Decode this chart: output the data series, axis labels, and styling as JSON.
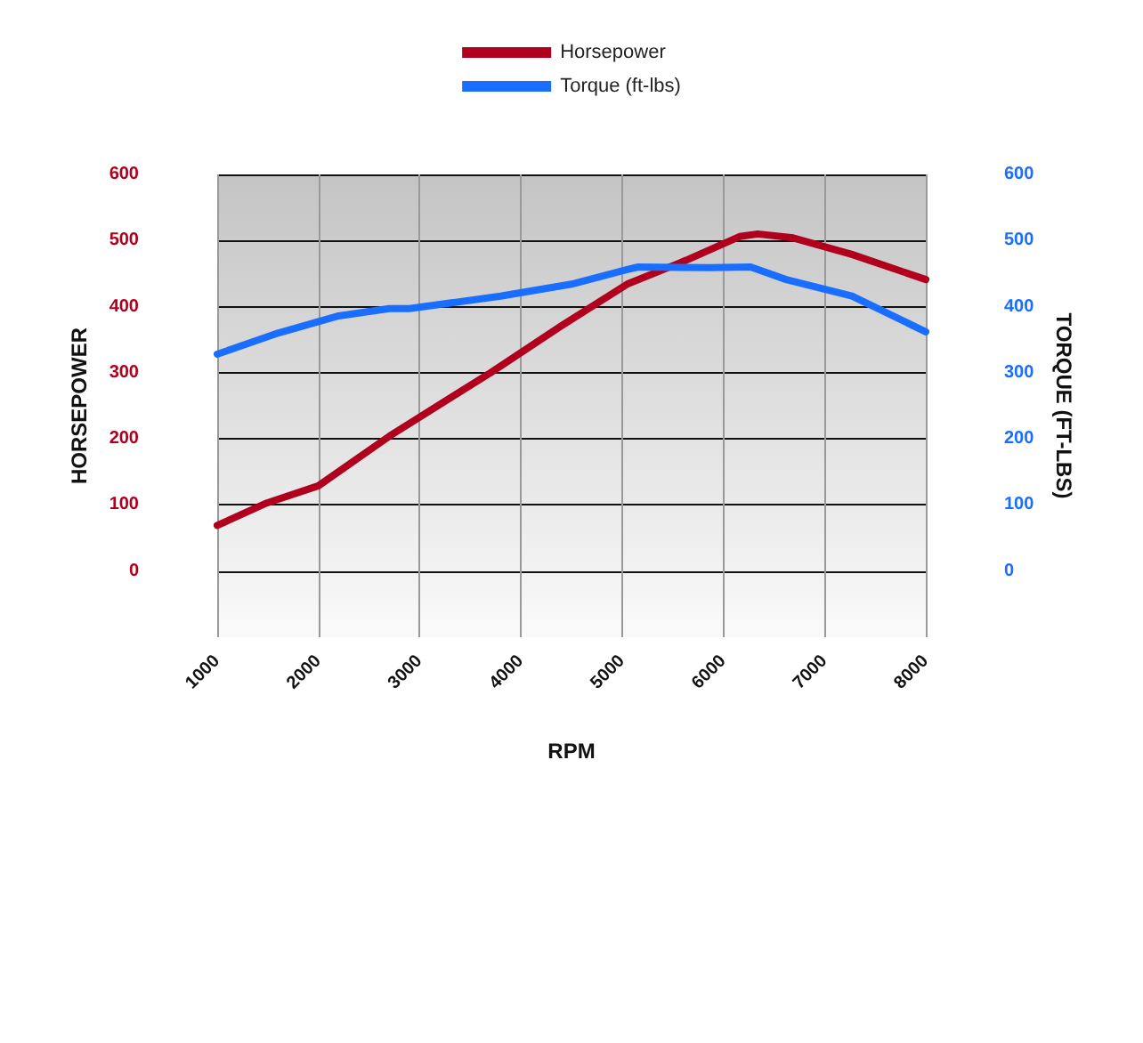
{
  "chart_data": {
    "type": "line",
    "xlabel": "RPM",
    "ylabel": "HORSEPOWER",
    "y2label": "TORQUE (FT-LBS)",
    "xlim": [
      1000,
      8000
    ],
    "xticks": [
      1000,
      2000,
      3000,
      4000,
      5000,
      6000,
      7000,
      8000
    ],
    "ylim": [
      -100,
      600
    ],
    "yticks": [
      0,
      100,
      200,
      300,
      400,
      500,
      600
    ],
    "y2lim": [
      -100,
      600
    ],
    "y2ticks": [
      0,
      100,
      200,
      300,
      400,
      500,
      600
    ],
    "grid": true,
    "legend": "top",
    "marker": "none",
    "line_style": "solid",
    "series": [
      {
        "name": "Horsepower",
        "color": "#b0001e",
        "x": [
          1000,
          1490,
          2000,
          2700,
          3700,
          4400,
          5050,
          5630,
          6160,
          6340,
          6690,
          7270,
          8000
        ],
        "values": [
          69,
          103,
          129,
          204,
          300,
          371,
          434,
          470,
          506,
          510,
          504,
          479,
          441
        ]
      },
      {
        "name": "Torque (ft-lbs)",
        "color": "#1a6eff",
        "axis": "y2",
        "x": [
          1000,
          1600,
          2200,
          2700,
          2900,
          3800,
          4500,
          5050,
          5160,
          5860,
          6270,
          6620,
          7270,
          8000
        ],
        "values": [
          328,
          360,
          386,
          397,
          397,
          416,
          434,
          456,
          460,
          459,
          460,
          441,
          416,
          362
        ]
      }
    ]
  }
}
